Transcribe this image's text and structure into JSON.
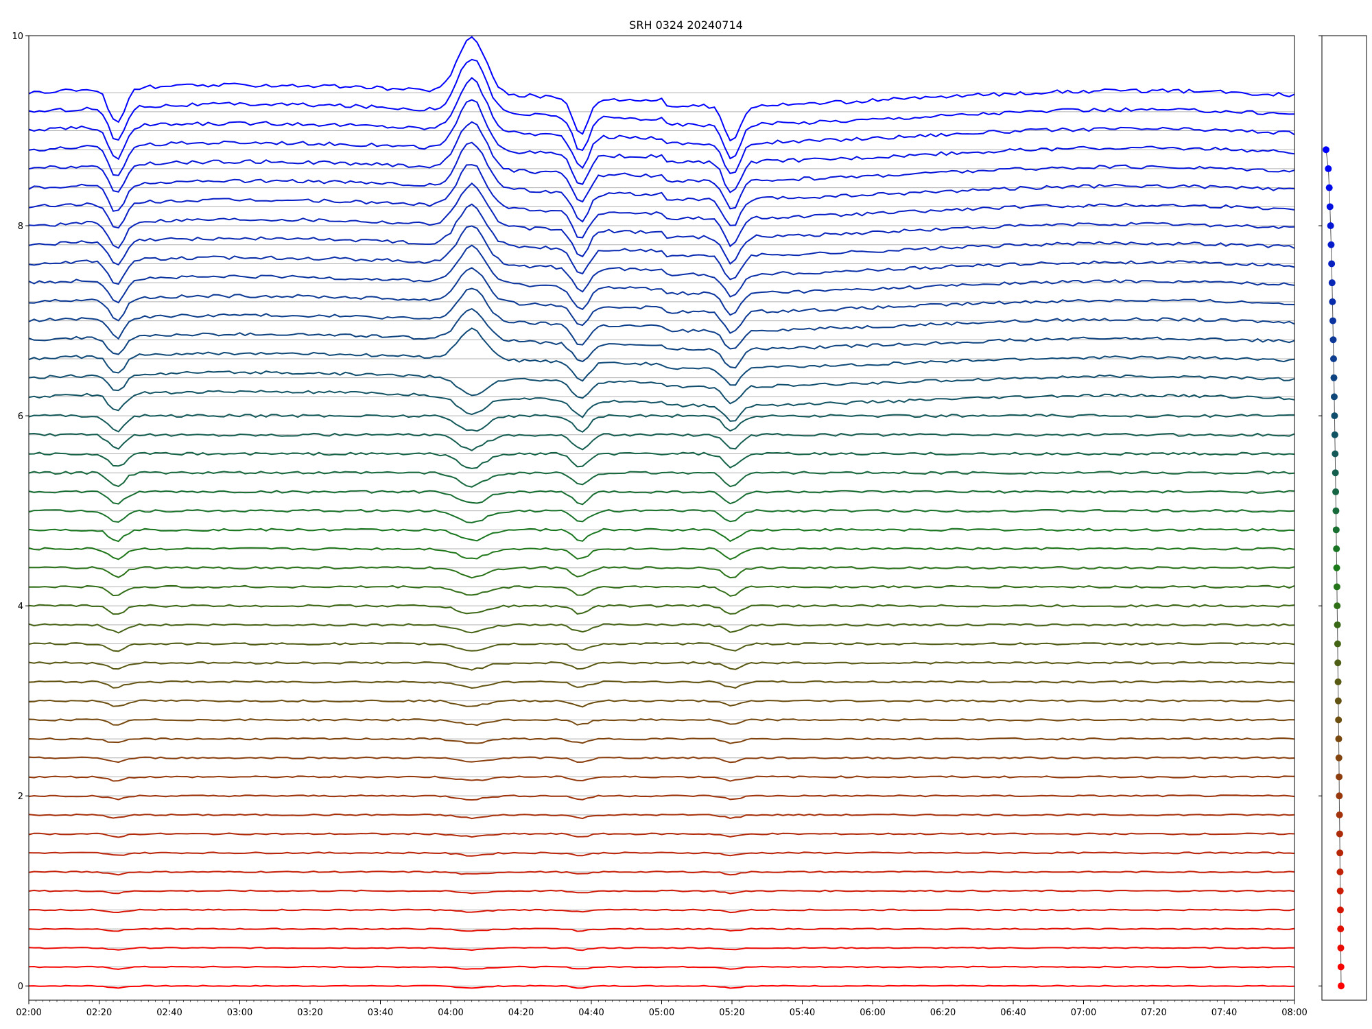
{
  "chart_data": {
    "type": "line",
    "title": "SRH 0324 20240714",
    "xlabel": "",
    "ylabel": "",
    "x_range": [
      "02:00",
      "08:00"
    ],
    "x_ticks": [
      "02:00",
      "02:20",
      "02:40",
      "03:00",
      "03:20",
      "03:40",
      "04:00",
      "04:20",
      "04:40",
      "05:00",
      "05:20",
      "05:40",
      "06:00",
      "06:20",
      "06:40",
      "07:00",
      "07:20",
      "07:40",
      "08:00"
    ],
    "ylim": [
      -0.15,
      10
    ],
    "y_ticks": [
      "0",
      "2",
      "4",
      "6",
      "8",
      "10"
    ],
    "grid": "horizontal reference lines at each channel baseline",
    "channel_count": 48,
    "channel_spacing": 0.2,
    "channel_color_gradient": [
      "#ff0000",
      "#1a7a1a",
      "#0000ff"
    ],
    "top_channel_offset": 9.4,
    "common_events": [
      {
        "time": "02:25",
        "description": "strong negative dip in upper channels"
      },
      {
        "time": "04:06",
        "description": "dip across middle channels, peak in upper channels"
      },
      {
        "time": "04:37",
        "description": "spike in upper channels"
      },
      {
        "time": "05:20",
        "description": "dips in lower channels"
      }
    ],
    "side_panel": {
      "type": "scatter",
      "points": 45,
      "color_gradient": [
        "#0000ff",
        "#1a7a1a",
        "#ff0000"
      ]
    }
  }
}
